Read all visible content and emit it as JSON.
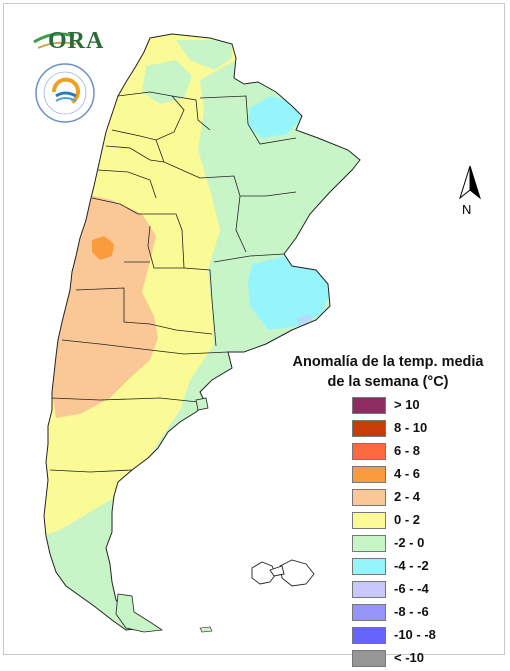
{
  "logos": {
    "ora_text": "ORA",
    "smn_ring_text": "SERVICIO METEOROLOGICO NACIONAL",
    "smn_country": "ARGENTINA"
  },
  "north_arrow": {
    "label": "N"
  },
  "legend": {
    "title_line1": "Anomalía de la temp. media",
    "title_line2": "de la semana (°C)",
    "items": [
      {
        "label": "> 10",
        "color": "#8e2d62"
      },
      {
        "label": "8 - 10",
        "color": "#c83c0a"
      },
      {
        "label": "6 - 8",
        "color": "#fa6a3c"
      },
      {
        "label": "4 - 6",
        "color": "#fa9b3c"
      },
      {
        "label": "2 - 4",
        "color": "#fac896"
      },
      {
        "label": "0 - 2",
        "color": "#fafa96"
      },
      {
        "label": "-2 - 0",
        "color": "#c8f5c8"
      },
      {
        "label": "-4 - -2",
        "color": "#96f5fa"
      },
      {
        "label": "-6 - -4",
        "color": "#c8c8fa"
      },
      {
        "label": "-8 - -6",
        "color": "#9696fa"
      },
      {
        "label": "-10 - -8",
        "color": "#6464fa"
      },
      {
        "label": "< -10",
        "color": "#969696"
      }
    ]
  }
}
